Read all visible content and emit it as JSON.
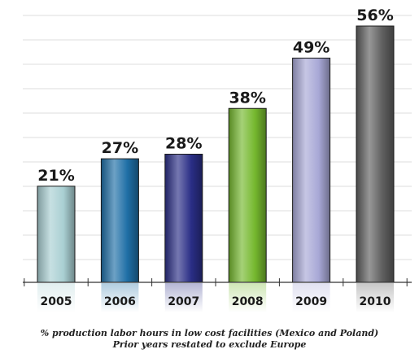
{
  "chart_data": {
    "type": "bar",
    "categories": [
      "2005",
      "2006",
      "2007",
      "2008",
      "2009",
      "2010"
    ],
    "values": [
      21,
      27,
      28,
      38,
      49,
      56
    ],
    "data_labels": [
      "21%",
      "27%",
      "28%",
      "38%",
      "49%",
      "56%"
    ],
    "ylim": [
      0,
      56
    ],
    "grid": true,
    "bar_colors": [
      "#a9cfd2",
      "#1f6fa6",
      "#2a2e86",
      "#75b82e",
      "#a8a8d6",
      "#5f5f5f"
    ],
    "caption_line1": "% production labor hours in low cost facilities (Mexico and Poland)",
    "caption_line2": "Prior years restated to exclude Europe"
  }
}
